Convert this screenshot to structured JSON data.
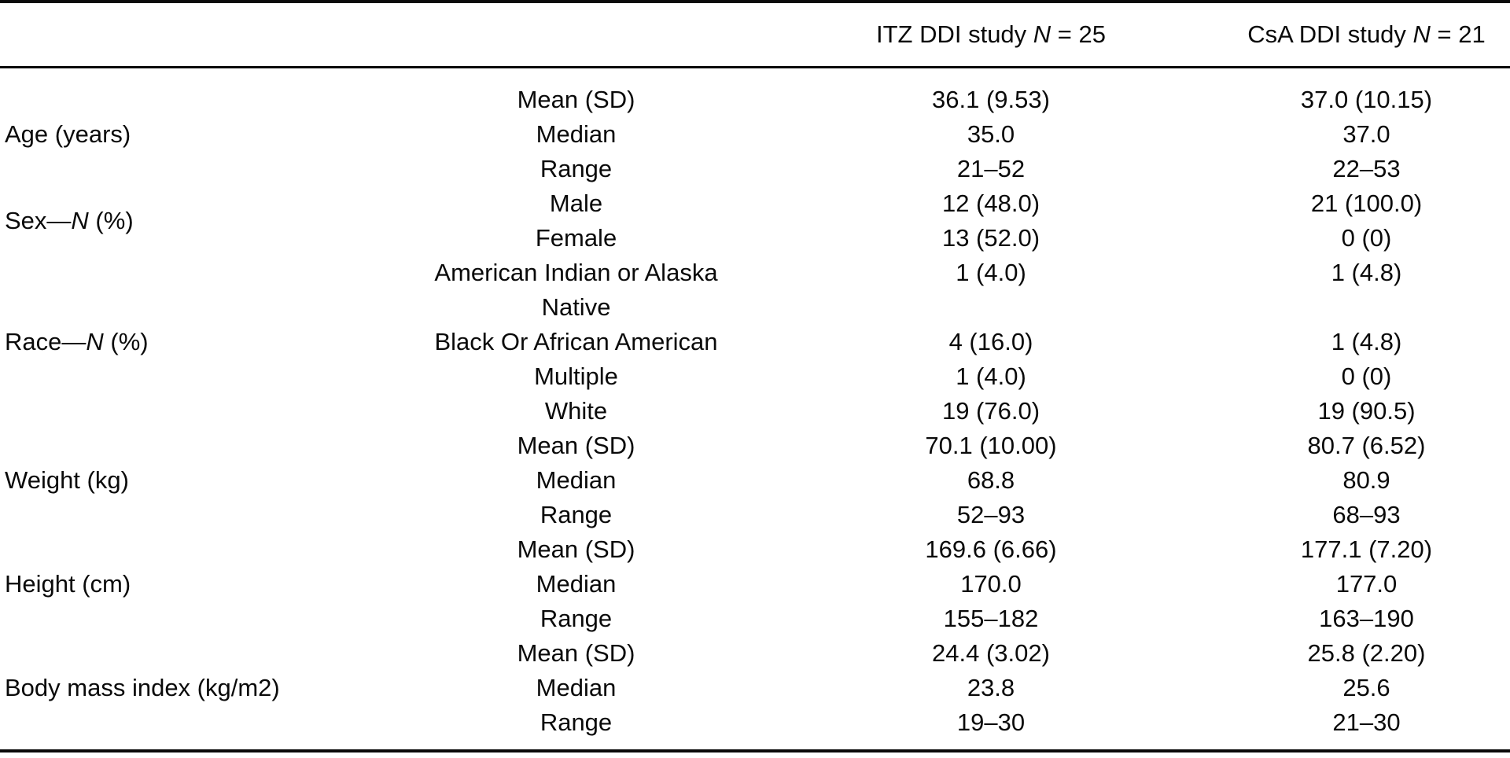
{
  "table": {
    "headers": {
      "itz": {
        "pre": "ITZ DDI study ",
        "n": "N",
        "post": " = 25"
      },
      "csa": {
        "pre": "CsA DDI study ",
        "n": "N",
        "post": " = 21"
      }
    },
    "groups": [
      {
        "category": {
          "pre": "Age (years)",
          "n": "",
          "post": ""
        },
        "rows": [
          {
            "stat": "Mean (SD)",
            "itz": "36.1 (9.53)",
            "csa": "37.0 (10.15)"
          },
          {
            "stat": "Median",
            "itz": "35.0",
            "csa": "37.0"
          },
          {
            "stat": "Range",
            "itz": "21–52",
            "csa": "22–53"
          }
        ]
      },
      {
        "category": {
          "pre": "Sex—",
          "n": "N",
          "post": " (%)"
        },
        "rows": [
          {
            "stat": "Male",
            "itz": "12 (48.0)",
            "csa": "21 (100.0)"
          },
          {
            "stat": "Female",
            "itz": "13 (52.0)",
            "csa": "0 (0)"
          }
        ]
      },
      {
        "category": {
          "pre": "Race—",
          "n": "N",
          "post": " (%)"
        },
        "rows": [
          {
            "stat_line1": "American Indian or Alaska",
            "stat_line2": "Native",
            "itz": "1 (4.0)",
            "csa": "1 (4.8)"
          },
          {
            "stat": "Black Or African American",
            "itz": "4 (16.0)",
            "csa": "1 (4.8)"
          },
          {
            "stat": "Multiple",
            "itz": "1 (4.0)",
            "csa": "0 (0)"
          },
          {
            "stat": "White",
            "itz": "19 (76.0)",
            "csa": "19 (90.5)"
          }
        ]
      },
      {
        "category": {
          "pre": "Weight (kg)",
          "n": "",
          "post": ""
        },
        "rows": [
          {
            "stat": "Mean (SD)",
            "itz": "70.1 (10.00)",
            "csa": "80.7 (6.52)"
          },
          {
            "stat": "Median",
            "itz": "68.8",
            "csa": "80.9"
          },
          {
            "stat": "Range",
            "itz": "52–93",
            "csa": "68–93"
          }
        ]
      },
      {
        "category": {
          "pre": "Height (cm)",
          "n": "",
          "post": ""
        },
        "rows": [
          {
            "stat": "Mean (SD)",
            "itz": "169.6 (6.66)",
            "csa": "177.1 (7.20)"
          },
          {
            "stat": "Median",
            "itz": "170.0",
            "csa": "177.0"
          },
          {
            "stat": "Range",
            "itz": "155–182",
            "csa": "163–190"
          }
        ]
      },
      {
        "category": {
          "pre": "Body mass index (kg/m2)",
          "n": "",
          "post": ""
        },
        "rows": [
          {
            "stat": "Mean (SD)",
            "itz": "24.4 (3.02)",
            "csa": "25.8 (2.20)"
          },
          {
            "stat": "Median",
            "itz": "23.8",
            "csa": "25.6"
          },
          {
            "stat": "Range",
            "itz": "19–30",
            "csa": "21–30"
          }
        ]
      }
    ]
  }
}
